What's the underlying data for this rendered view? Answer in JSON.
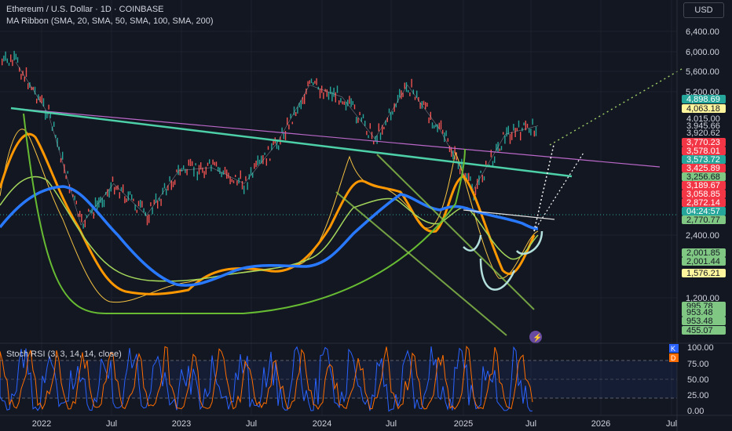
{
  "header": {
    "symbol_line": "Ethereum / U.S. Dollar · 1D · COINBASE",
    "indicator_line": "MA Ribbon (SMA, 20, SMA, 50, SMA, 100, SMA, 200)",
    "currency_button": "USD"
  },
  "price_axis_ticks": [
    "6,400.00",
    "6,000.00",
    "5,600.00",
    "5,200.00",
    "2,400.00",
    "1,200.00"
  ],
  "price_labels": [
    {
      "text": "4,898.69",
      "bg": "#26a69a",
      "fg": "#ffffff"
    },
    {
      "text": "4,063.18",
      "bg": "#fff59d",
      "fg": "#131722"
    },
    {
      "text": "4,015.00",
      "bg": "#131722",
      "fg": "#d1d4dc"
    },
    {
      "text": "3,945.66",
      "bg": "#131722",
      "fg": "#d1d4dc"
    },
    {
      "text": "3,920.62",
      "bg": "#131722",
      "fg": "#d1d4dc"
    },
    {
      "text": "3,770.23",
      "bg": "#f23645",
      "fg": "#ffffff"
    },
    {
      "text": "3,578.01",
      "bg": "#f23645",
      "fg": "#ffffff"
    },
    {
      "text": "3,573.72",
      "bg": "#26a69a",
      "fg": "#ffffff"
    },
    {
      "text": "3,425.89",
      "bg": "#f23645",
      "fg": "#ffffff"
    },
    {
      "text": "3,256.68",
      "bg": "#81c784",
      "fg": "#131722"
    },
    {
      "text": "3,189.67",
      "bg": "#f23645",
      "fg": "#ffffff"
    },
    {
      "text": "3,058.85",
      "bg": "#f23645",
      "fg": "#ffffff"
    },
    {
      "text": "2,872.14",
      "bg": "#f23645",
      "fg": "#ffffff"
    },
    {
      "text": "04:24:57",
      "bg": "#26a69a",
      "fg": "#ffffff"
    },
    {
      "text": "2,770.77",
      "bg": "#81c784",
      "fg": "#131722"
    },
    {
      "text": "2,001.85",
      "bg": "#81c784",
      "fg": "#131722"
    },
    {
      "text": "2,001.44",
      "bg": "#81c784",
      "fg": "#131722"
    },
    {
      "text": "1,576.21",
      "bg": "#fff59d",
      "fg": "#131722"
    },
    {
      "text": "995.78",
      "bg": "#81c784",
      "fg": "#131722"
    },
    {
      "text": "953.48",
      "bg": "#81c784",
      "fg": "#131722"
    },
    {
      "text": "953.48",
      "bg": "#81c784",
      "fg": "#131722"
    },
    {
      "text": "455.07",
      "bg": "#81c784",
      "fg": "#131722"
    }
  ],
  "stoch": {
    "label": "Stoch RSI (3, 3, 14, 14, close)",
    "ticks": [
      "100.00",
      "75.00",
      "50.00",
      "25.00",
      "0.00"
    ],
    "k_badge": "K",
    "d_badge": "D",
    "k_color": "#2962ff",
    "d_color": "#ff6d00"
  },
  "time_axis": [
    "2022",
    "Jul",
    "2023",
    "Jul",
    "2024",
    "Jul",
    "2025",
    "Jul",
    "2026",
    "Jul"
  ],
  "chart_data": {
    "type": "line",
    "x": [
      "2021-11",
      "2022-03",
      "2022-06",
      "2022-09",
      "2022-12",
      "2023-03",
      "2023-06",
      "2023-09",
      "2023-12",
      "2024-03",
      "2024-06",
      "2024-09",
      "2024-12",
      "2025-02",
      "2025-04",
      "2025-06",
      "2025-07"
    ],
    "series": [
      {
        "values": [
          4800,
          3000,
          1100,
          1600,
          1200,
          1800,
          1850,
          1600,
          2300,
          3900,
          3500,
          2400,
          3900,
          2600,
          1500,
          2500,
          2700
        ]
      }
    ],
    "ylim": [
      400,
      6800
    ],
    "price_scale": "log"
  }
}
